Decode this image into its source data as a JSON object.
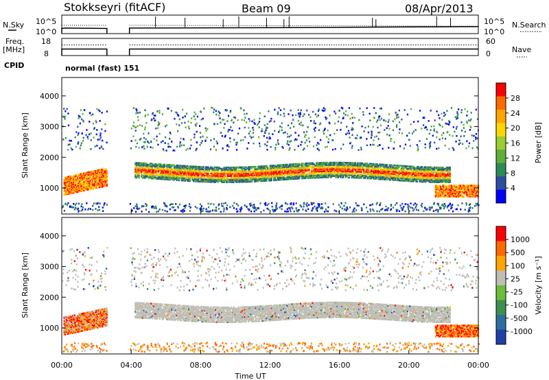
{
  "header": {
    "title": "Stokkseyri (fitACF)",
    "beam": "Beam 09",
    "date": "08/Apr/2013"
  },
  "left_labels": {
    "nsky": "N.Sky",
    "freq_line1": "Freq.",
    "freq_line2": "[MHz]",
    "cpid": "CPID"
  },
  "right_labels": {
    "nsearch": "N.Search",
    "nave": "Nave"
  },
  "mode_text": "normal (fast)  151",
  "colors": {
    "power": [
      "#0000ff",
      "#2d4fa0",
      "#2e8b57",
      "#5fae3c",
      "#9acd32",
      "#ffd700",
      "#ffa500",
      "#ff6a00",
      "#ff0000"
    ],
    "velocity": [
      "#1f3fa8",
      "#2e6e9e",
      "#3f8f50",
      "#6abe3c",
      "#bfbfb6",
      "#ffa500",
      "#ff6a00",
      "#ff0000"
    ]
  },
  "chart_data": [
    {
      "type": "line",
      "name": "noise-panel",
      "y_left_ticks": [
        "10^5",
        "10^0"
      ],
      "y_right_ticks": [
        "10^5",
        "10^0"
      ],
      "x_range": [
        0,
        24
      ],
      "gap": [
        2.6,
        3.9
      ],
      "series": [
        {
          "name": "N.Sky",
          "x": [
            0,
            0.2,
            2.6,
            3.9,
            12,
            16,
            20,
            24
          ],
          "y": [
            0.72,
            0.7,
            0.72,
            0.7,
            0.68,
            0.66,
            0.64,
            0.62
          ]
        }
      ]
    },
    {
      "type": "line",
      "name": "freq-panel",
      "y_left_ticks": [
        "18",
        "8"
      ],
      "y_right_ticks": [
        "60",
        "0"
      ],
      "x_range": [
        0,
        24
      ],
      "gap": [
        2.6,
        3.9
      ]
    },
    {
      "type": "heatmap",
      "name": "power-panel",
      "ylabel": "Slant Range [km]",
      "y_ticks": [
        1000,
        2000,
        3000,
        4000
      ],
      "ylim": [
        150,
        4600
      ],
      "colorbar_label": "Power [dB]",
      "colorbar_ticks": [
        "28",
        "24",
        "20",
        "16",
        "12",
        "8",
        "4"
      ],
      "x_range": [
        0,
        24
      ]
    },
    {
      "type": "heatmap",
      "name": "velocity-panel",
      "ylabel": "Slant Range [km]",
      "y_ticks": [
        1000,
        2000,
        3000,
        4000
      ],
      "ylim": [
        150,
        4600
      ],
      "colorbar_label": "Velocity [m s⁻¹]",
      "colorbar_ticks": [
        "1000",
        "500",
        "100",
        "25",
        "-25",
        "-100",
        "-500",
        "-1000"
      ],
      "x_range": [
        0,
        24
      ]
    }
  ],
  "x_axis": {
    "ticks": [
      "00:00",
      "04:00",
      "08:00",
      "12:00",
      "16:00",
      "20:00",
      "00:00"
    ],
    "label": "Time UT"
  }
}
